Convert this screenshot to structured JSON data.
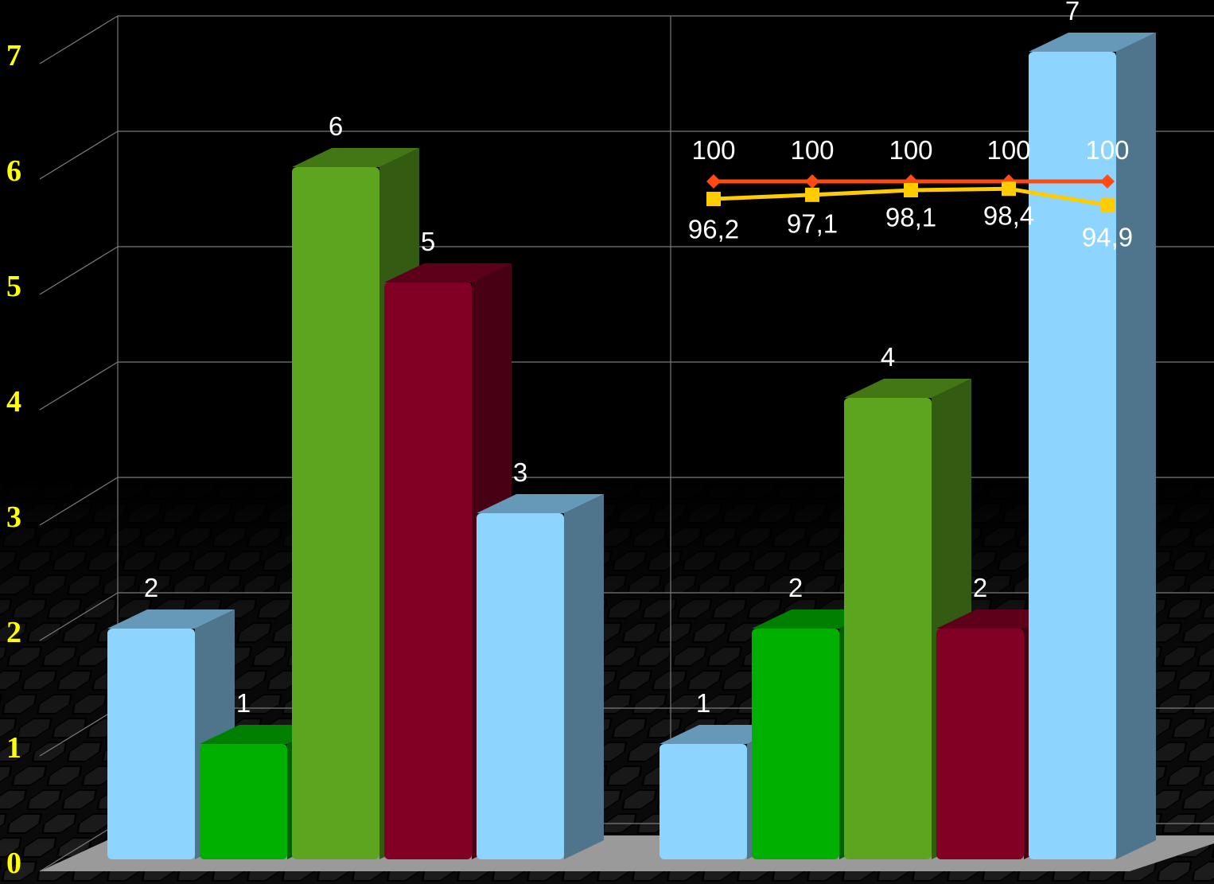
{
  "chart_data": {
    "type": "bar",
    "ylim": [
      0,
      7
    ],
    "y_ticks": [
      "0",
      "1",
      "2",
      "3",
      "4",
      "5",
      "6",
      "7"
    ],
    "grid": true,
    "groups": [
      {
        "bars": [
          {
            "value": 2,
            "label": "2",
            "color": "#8dd5ff"
          },
          {
            "value": 1,
            "label": "1",
            "color": "#00b000"
          },
          {
            "value": 6,
            "label": "6",
            "color": "#5da51e"
          },
          {
            "value": 5,
            "label": "5",
            "color": "#820024"
          },
          {
            "value": 3,
            "label": "3",
            "color": "#8dd5ff"
          }
        ]
      },
      {
        "bars": [
          {
            "value": 1,
            "label": "1",
            "color": "#8dd5ff"
          },
          {
            "value": 2,
            "label": "2",
            "color": "#00b000"
          },
          {
            "value": 4,
            "label": "4",
            "color": "#5da51e"
          },
          {
            "value": 2,
            "label": "2",
            "color": "#820024"
          },
          {
            "value": 7,
            "label": "7",
            "color": "#8dd5ff"
          }
        ]
      }
    ],
    "line_series": [
      {
        "values": [
          100,
          100,
          100,
          100,
          100
        ],
        "labels": [
          "100",
          "100",
          "100",
          "100",
          "100"
        ],
        "color": "#ff4a14",
        "marker": "diamond"
      },
      {
        "values": [
          96.2,
          97.1,
          98.1,
          98.4,
          94.9
        ],
        "labels": [
          "96,2",
          "97,1",
          "98,1",
          "98,4",
          "94,9"
        ],
        "color": "#ffcc00",
        "marker": "square"
      }
    ]
  }
}
